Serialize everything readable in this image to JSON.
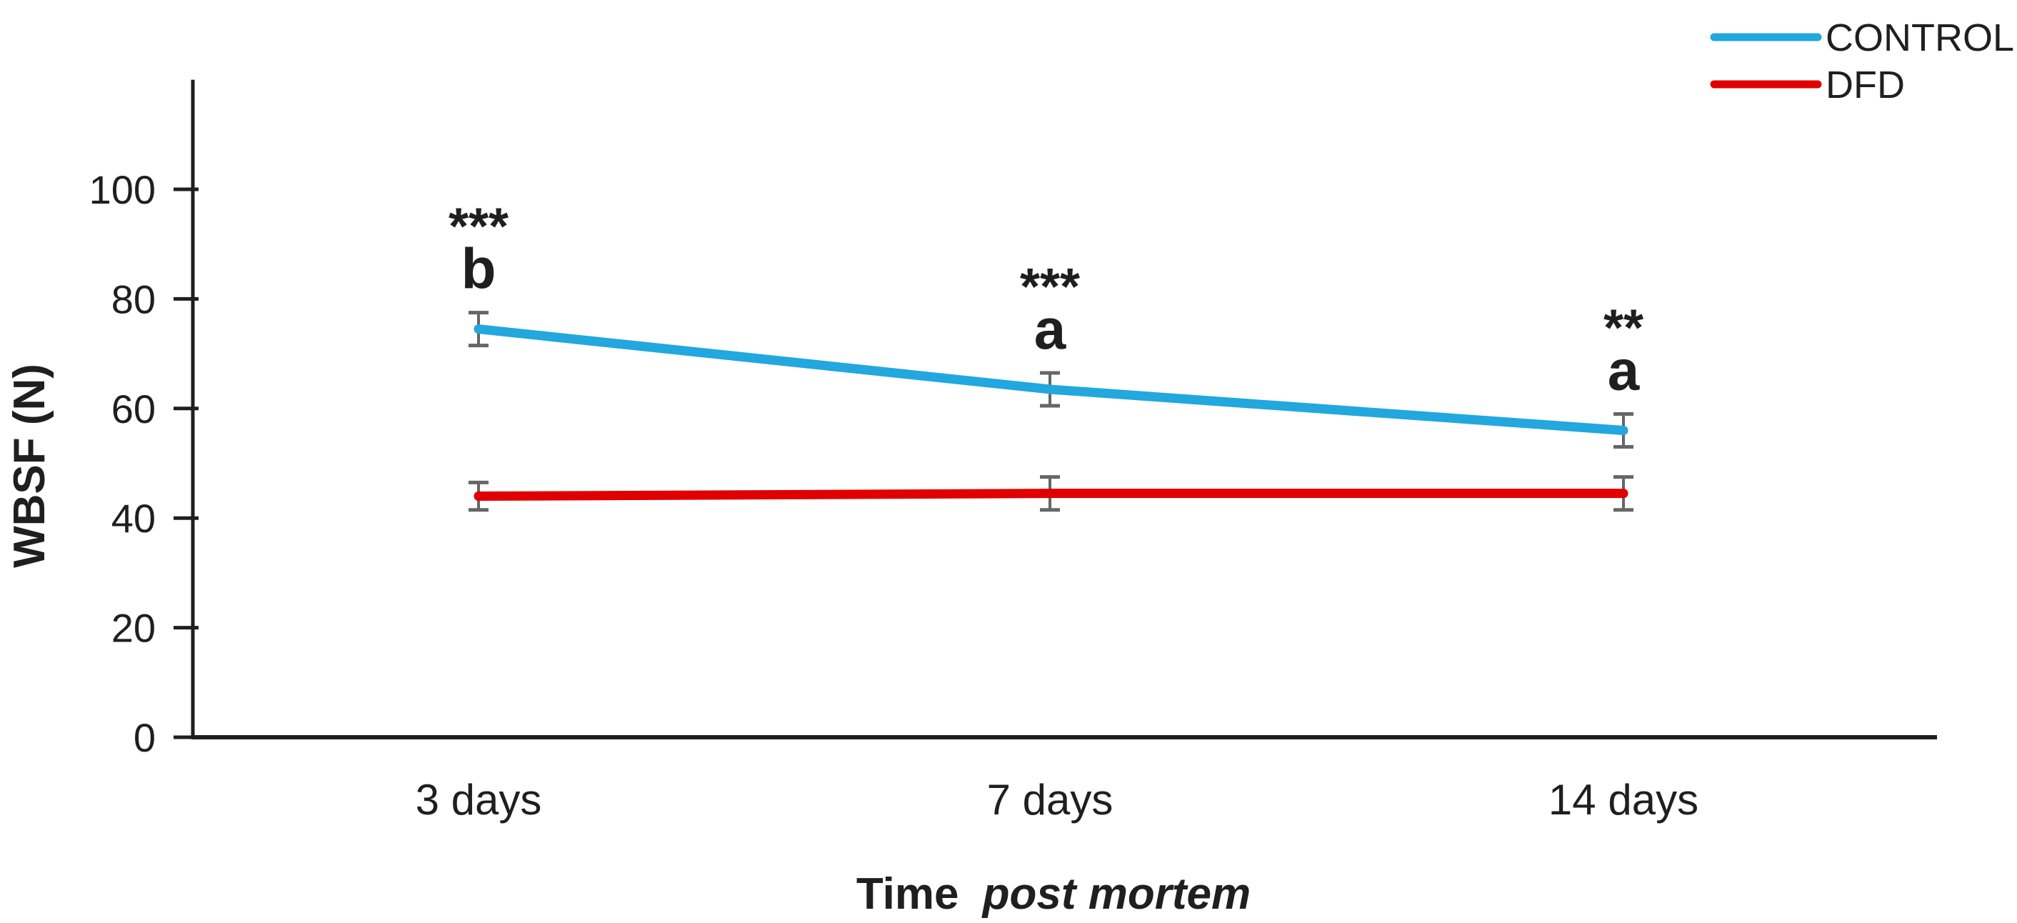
{
  "chart_data": {
    "type": "line",
    "title": "",
    "categories": [
      "3 days",
      "7 days",
      "14 days"
    ],
    "series": [
      {
        "name": "CONTROL",
        "color": "#22A7DF",
        "values": [
          74.5,
          63.5,
          56
        ],
        "error_bars": [
          3,
          3,
          3
        ]
      },
      {
        "name": "DFD",
        "color": "#E00000",
        "values": [
          44,
          44.5,
          44.5
        ],
        "error_bars": [
          2.5,
          3,
          3
        ]
      }
    ],
    "annotations": {
      "stars": [
        "***",
        "***",
        "**"
      ],
      "letters": [
        "b",
        "a",
        "a"
      ],
      "star_color": "#000000",
      "letter_color": "#22A7DF"
    },
    "xlabel_normal": "Time",
    "xlabel_italic": "post mortem",
    "ylabel": "WBSF (N)",
    "yticks": [
      0,
      20,
      40,
      60,
      80,
      100
    ],
    "ylim": [
      0,
      120
    ],
    "grid": false,
    "legend_position": "top-right",
    "error_bar_color": "#666666",
    "axis_color": "#1f1f1f",
    "background": "#ffffff"
  }
}
